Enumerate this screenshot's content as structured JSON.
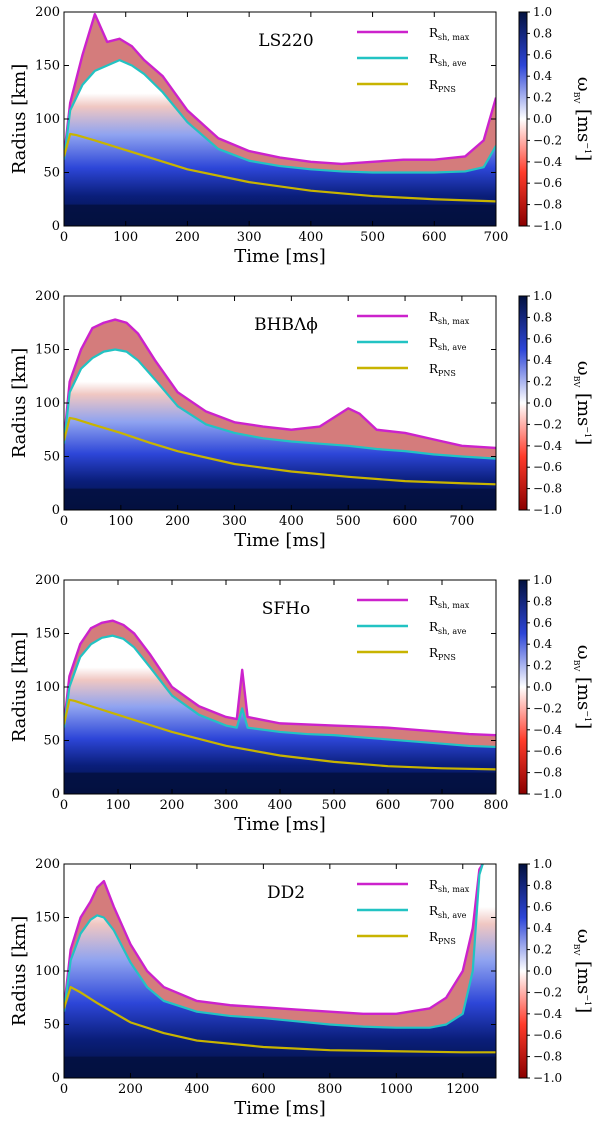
{
  "colorbar": {
    "label_symbol": "ω",
    "label_sub": "BV",
    "label_unit": "[ms",
    "label_exp": "−1",
    "label_close": "]",
    "ticks": [
      "1.0",
      "0.8",
      "0.6",
      "0.4",
      "0.2",
      "0.0",
      "−0.2",
      "−0.4",
      "−0.6",
      "−0.8",
      "−1.0"
    ],
    "range": [
      -1.0,
      1.0
    ],
    "colors": {
      "high": "#03113f",
      "mid_high": "#2d46d8",
      "zero": "#ffffff",
      "mid_low": "#ff3b2a",
      "low": "#8a0000"
    }
  },
  "legend": {
    "items": [
      {
        "main": "R",
        "sub": "sh, max",
        "color": "#cc22cc"
      },
      {
        "main": "R",
        "sub": "sh, ave",
        "color": "#22c3c3"
      },
      {
        "main": "R",
        "sub": "PNS",
        "color": "#c8b400"
      }
    ]
  },
  "chart_data": [
    {
      "type": "line",
      "title": "LS220",
      "xlabel": "Time [ms]",
      "ylabel": "Radius [km]",
      "xlim": [
        0,
        700
      ],
      "ylim": [
        0,
        200
      ],
      "xticks": [
        0,
        100,
        200,
        300,
        400,
        500,
        600,
        700
      ],
      "yticks": [
        0,
        50,
        100,
        150,
        200
      ],
      "series": [
        {
          "name": "R_sh,max",
          "x": [
            0,
            10,
            30,
            50,
            70,
            90,
            110,
            130,
            160,
            200,
            250,
            300,
            350,
            400,
            450,
            500,
            550,
            600,
            650,
            680,
            700
          ],
          "y": [
            65,
            115,
            160,
            198,
            172,
            175,
            168,
            155,
            140,
            108,
            82,
            70,
            64,
            60,
            58,
            60,
            62,
            62,
            65,
            80,
            120
          ]
        },
        {
          "name": "R_sh,ave",
          "x": [
            0,
            10,
            30,
            50,
            70,
            90,
            110,
            130,
            160,
            200,
            250,
            300,
            350,
            400,
            450,
            500,
            550,
            600,
            650,
            680,
            700
          ],
          "y": [
            62,
            108,
            132,
            145,
            150,
            155,
            150,
            142,
            125,
            97,
            72,
            61,
            56,
            53,
            51,
            50,
            50,
            50,
            51,
            55,
            75
          ]
        },
        {
          "name": "R_PNS",
          "x": [
            0,
            10,
            20,
            50,
            100,
            150,
            200,
            300,
            400,
            500,
            600,
            700
          ],
          "y": [
            65,
            86,
            85,
            80,
            71,
            62,
            53,
            41,
            33,
            28,
            25,
            23
          ]
        }
      ]
    },
    {
      "type": "line",
      "title": "BHBΛϕ",
      "xlabel": "Time [ms]",
      "ylabel": "Radius [km]",
      "xlim": [
        0,
        760
      ],
      "ylim": [
        0,
        200
      ],
      "xticks": [
        0,
        100,
        200,
        300,
        400,
        500,
        600,
        700
      ],
      "yticks": [
        0,
        50,
        100,
        150,
        200
      ],
      "series": [
        {
          "name": "R_sh,max",
          "x": [
            0,
            10,
            30,
            50,
            70,
            90,
            110,
            130,
            160,
            200,
            250,
            300,
            350,
            400,
            450,
            500,
            520,
            550,
            600,
            650,
            700,
            760
          ],
          "y": [
            65,
            120,
            150,
            170,
            175,
            178,
            175,
            165,
            140,
            110,
            92,
            82,
            78,
            75,
            78,
            95,
            90,
            75,
            72,
            66,
            60,
            58
          ]
        },
        {
          "name": "R_sh,ave",
          "x": [
            0,
            10,
            30,
            50,
            70,
            90,
            110,
            130,
            160,
            200,
            250,
            300,
            350,
            400,
            450,
            500,
            550,
            600,
            650,
            700,
            760
          ],
          "y": [
            62,
            110,
            132,
            142,
            148,
            150,
            148,
            140,
            122,
            97,
            80,
            72,
            67,
            64,
            62,
            60,
            57,
            55,
            52,
            50,
            48
          ]
        },
        {
          "name": "R_PNS",
          "x": [
            0,
            10,
            20,
            50,
            100,
            150,
            200,
            300,
            400,
            500,
            600,
            700,
            760
          ],
          "y": [
            65,
            86,
            85,
            80,
            72,
            63,
            55,
            43,
            36,
            31,
            27,
            25,
            24
          ]
        }
      ]
    },
    {
      "type": "line",
      "title": "SFHo",
      "xlabel": "Time [ms]",
      "ylabel": "Radius [km]",
      "xlim": [
        0,
        800
      ],
      "ylim": [
        0,
        200
      ],
      "xticks": [
        0,
        100,
        200,
        300,
        400,
        500,
        600,
        700,
        800
      ],
      "yticks": [
        0,
        50,
        100,
        150,
        200
      ],
      "series": [
        {
          "name": "R_sh,max",
          "x": [
            0,
            10,
            30,
            50,
            70,
            90,
            110,
            130,
            160,
            200,
            250,
            300,
            320,
            330,
            340,
            400,
            450,
            500,
            550,
            600,
            650,
            700,
            750,
            800
          ],
          "y": [
            65,
            110,
            140,
            155,
            160,
            162,
            158,
            150,
            130,
            100,
            82,
            72,
            70,
            116,
            72,
            66,
            65,
            64,
            63,
            62,
            60,
            58,
            56,
            55
          ]
        },
        {
          "name": "R_sh,ave",
          "x": [
            0,
            10,
            30,
            50,
            70,
            90,
            110,
            130,
            160,
            200,
            250,
            300,
            320,
            330,
            340,
            400,
            450,
            500,
            550,
            600,
            650,
            700,
            750,
            800
          ],
          "y": [
            62,
            100,
            128,
            140,
            146,
            148,
            145,
            137,
            118,
            92,
            74,
            64,
            62,
            80,
            62,
            58,
            56,
            55,
            53,
            51,
            49,
            47,
            45,
            44
          ]
        },
        {
          "name": "R_PNS",
          "x": [
            0,
            10,
            20,
            50,
            100,
            150,
            200,
            300,
            400,
            500,
            600,
            700,
            800
          ],
          "y": [
            65,
            88,
            87,
            82,
            74,
            66,
            58,
            45,
            36,
            30,
            26,
            24,
            23
          ]
        }
      ]
    },
    {
      "type": "line",
      "title": "DD2",
      "xlabel": "Time [ms]",
      "ylabel": "Radius [km]",
      "xlim": [
        0,
        1300
      ],
      "ylim": [
        0,
        200
      ],
      "xticks": [
        0,
        200,
        400,
        600,
        800,
        1000,
        1200
      ],
      "yticks": [
        0,
        50,
        100,
        150,
        200
      ],
      "series": [
        {
          "name": "R_sh,max",
          "x": [
            0,
            20,
            50,
            80,
            100,
            120,
            150,
            200,
            250,
            300,
            400,
            500,
            600,
            700,
            800,
            900,
            1000,
            1100,
            1150,
            1200,
            1230,
            1250,
            1260
          ],
          "y": [
            65,
            120,
            150,
            165,
            178,
            184,
            160,
            125,
            100,
            85,
            72,
            68,
            66,
            64,
            62,
            60,
            60,
            65,
            75,
            100,
            140,
            195,
            200
          ]
        },
        {
          "name": "R_sh,ave",
          "x": [
            0,
            20,
            50,
            80,
            100,
            120,
            150,
            200,
            250,
            300,
            400,
            500,
            600,
            700,
            800,
            900,
            1000,
            1100,
            1150,
            1200,
            1230,
            1250,
            1260
          ],
          "y": [
            62,
            110,
            135,
            148,
            152,
            150,
            138,
            108,
            85,
            72,
            62,
            58,
            56,
            53,
            50,
            48,
            47,
            47,
            50,
            60,
            100,
            190,
            200
          ]
        },
        {
          "name": "R_PNS",
          "x": [
            0,
            20,
            50,
            100,
            200,
            300,
            400,
            600,
            800,
            1000,
            1200,
            1300
          ],
          "y": [
            65,
            85,
            80,
            70,
            52,
            42,
            35,
            29,
            26,
            25,
            24,
            24
          ]
        }
      ]
    }
  ]
}
